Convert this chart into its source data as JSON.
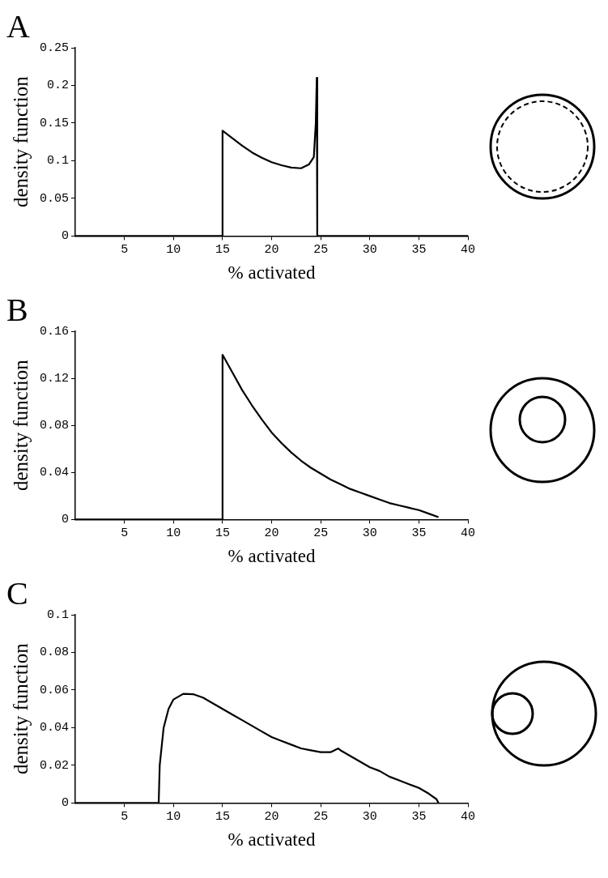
{
  "chart_data": [
    {
      "type": "line",
      "title": "A",
      "xlabel": "% activated",
      "ylabel": "density function",
      "xlim": [
        0,
        40
      ],
      "xticks": [
        5,
        10,
        15,
        20,
        25,
        30,
        35,
        40
      ],
      "ylim": [
        0,
        0.25
      ],
      "yticks": [
        0,
        0.05,
        0.1,
        0.15,
        0.2,
        0.25
      ],
      "line_style": "solid",
      "series": [
        {
          "color": "#000000",
          "x": [
            0,
            15,
            15,
            16,
            17,
            18,
            19,
            20,
            21,
            22,
            23,
            23.8,
            24.3,
            24.5,
            24.6,
            24.65,
            40
          ],
          "values": [
            0,
            0,
            0.14,
            0.13,
            0.12,
            0.111,
            0.104,
            0.098,
            0.094,
            0.091,
            0.09,
            0.095,
            0.105,
            0.15,
            0.21,
            0,
            0
          ]
        }
      ]
    },
    {
      "type": "line",
      "title": "B",
      "xlabel": "% activated",
      "ylabel": "density function",
      "xlim": [
        0,
        40
      ],
      "xticks": [
        5,
        10,
        15,
        20,
        25,
        30,
        35,
        40
      ],
      "ylim": [
        0,
        0.16
      ],
      "yticks": [
        0,
        0.04,
        0.08,
        0.12,
        0.16
      ],
      "line_style": "solid",
      "series": [
        {
          "color": "#000000",
          "x": [
            0,
            15,
            15,
            16,
            17,
            18,
            19,
            20,
            21,
            22,
            23,
            24,
            25,
            26,
            27,
            28,
            29,
            30,
            31,
            32,
            33,
            34,
            35,
            36,
            37
          ],
          "values": [
            0,
            0,
            0.14,
            0.125,
            0.11,
            0.097,
            0.085,
            0.074,
            0.065,
            0.057,
            0.05,
            0.044,
            0.039,
            0.034,
            0.03,
            0.026,
            0.023,
            0.02,
            0.017,
            0.014,
            0.012,
            0.01,
            0.008,
            0.005,
            0.002
          ]
        }
      ]
    },
    {
      "type": "line",
      "title": "C",
      "xlabel": "% activated",
      "ylabel": "density function",
      "xlim": [
        0,
        40
      ],
      "xticks": [
        5,
        10,
        15,
        20,
        25,
        30,
        35,
        40
      ],
      "ylim": [
        0,
        0.1
      ],
      "yticks": [
        0,
        0.02,
        0.04,
        0.06,
        0.08,
        0.1
      ],
      "line_style": "solid",
      "series": [
        {
          "color": "#000000",
          "x": [
            0,
            8.5,
            8.5,
            8.6,
            9,
            9.5,
            10,
            11,
            12,
            13,
            14,
            15,
            16,
            17,
            18,
            19,
            20,
            21,
            22,
            23,
            24,
            25,
            26,
            26.8,
            27,
            28,
            29,
            30,
            31,
            32,
            33,
            34,
            35,
            36,
            36.8,
            37
          ],
          "values": [
            0,
            0,
            0.001,
            0.02,
            0.04,
            0.05,
            0.055,
            0.058,
            0.0578,
            0.056,
            0.053,
            0.05,
            0.047,
            0.044,
            0.041,
            0.038,
            0.035,
            0.033,
            0.031,
            0.029,
            0.028,
            0.027,
            0.027,
            0.029,
            0.028,
            0.025,
            0.022,
            0.019,
            0.017,
            0.014,
            0.012,
            0.01,
            0.008,
            0.005,
            0.002,
            0
          ]
        }
      ]
    }
  ]
}
